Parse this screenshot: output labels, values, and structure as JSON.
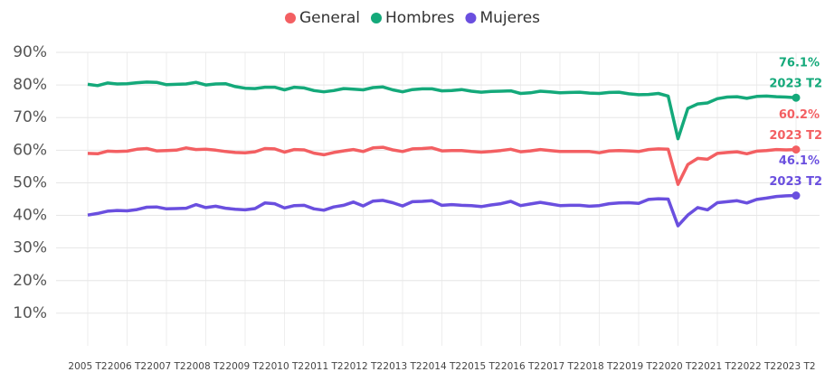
{
  "chart_data": {
    "type": "line",
    "categories": [
      "2005 T2",
      null,
      null,
      null,
      "2006 T2",
      null,
      null,
      null,
      "2007 T2",
      null,
      null,
      null,
      "2008 T2",
      null,
      null,
      null,
      "2009 T2",
      null,
      null,
      null,
      "2010 T2",
      null,
      null,
      null,
      "2011 T2",
      null,
      null,
      null,
      "2012 T2",
      null,
      null,
      null,
      "2013 T2",
      null,
      null,
      null,
      "2014 T2",
      null,
      null,
      null,
      "2015 T2",
      null,
      null,
      null,
      "2016 T2",
      null,
      null,
      null,
      "2017 T2",
      null,
      null,
      null,
      "2018 T2",
      null,
      null,
      null,
      "2019 T2",
      null,
      null,
      null,
      "2020 T2",
      null,
      null,
      null,
      "2021 T2",
      null,
      null,
      null,
      "2022 T2",
      null,
      null,
      null,
      "2023 T2"
    ],
    "series": [
      {
        "name": "General",
        "color": "#f35f62",
        "values": [
          59.0,
          58.9,
          59.7,
          59.6,
          59.7,
          60.3,
          60.5,
          59.8,
          59.9,
          60.0,
          60.7,
          60.2,
          60.3,
          60.0,
          59.6,
          59.3,
          59.2,
          59.5,
          60.5,
          60.4,
          59.4,
          60.2,
          60.1,
          59.1,
          58.6,
          59.3,
          59.8,
          60.2,
          59.6,
          60.7,
          60.9,
          60.1,
          59.6,
          60.4,
          60.5,
          60.7,
          59.8,
          59.9,
          59.9,
          59.6,
          59.4,
          59.6,
          59.9,
          60.3,
          59.5,
          59.8,
          60.2,
          59.9,
          59.6,
          59.6,
          59.6,
          59.6,
          59.2,
          59.8,
          59.9,
          59.8,
          59.6,
          60.2,
          60.4,
          60.3,
          49.5,
          55.6,
          57.5,
          57.2,
          59.0,
          59.3,
          59.5,
          58.9,
          59.7,
          59.9,
          60.2,
          60.1,
          60.2
        ],
        "value_labels": [
          null,
          null,
          null,
          null,
          null,
          null,
          null,
          null,
          null,
          null,
          null,
          null,
          null,
          null,
          null,
          null,
          null,
          null,
          null,
          null,
          null,
          null,
          null,
          null,
          null,
          null,
          null,
          null,
          null,
          null,
          null,
          null,
          null,
          null,
          null,
          null,
          null,
          null,
          null,
          null,
          null,
          null,
          null,
          null,
          null,
          null,
          null,
          null,
          null,
          null,
          null,
          null,
          null,
          null,
          null,
          null,
          null,
          null,
          null,
          null,
          null,
          null,
          null,
          null,
          null,
          null,
          null,
          null,
          null,
          null,
          null,
          null,
          "60.2%"
        ]
      },
      {
        "name": "Hombres",
        "color": "#14a97a",
        "values": [
          80.2,
          79.8,
          80.6,
          80.3,
          80.4,
          80.7,
          80.9,
          80.8,
          80.1,
          80.2,
          80.3,
          80.8,
          80.0,
          80.3,
          80.4,
          79.5,
          79.0,
          78.9,
          79.3,
          79.3,
          78.5,
          79.3,
          79.1,
          78.3,
          77.9,
          78.3,
          78.9,
          78.7,
          78.5,
          79.2,
          79.4,
          78.5,
          77.9,
          78.6,
          78.8,
          78.8,
          78.2,
          78.3,
          78.6,
          78.1,
          77.8,
          78.0,
          78.1,
          78.2,
          77.4,
          77.6,
          78.1,
          77.9,
          77.6,
          77.7,
          77.8,
          77.5,
          77.4,
          77.7,
          77.8,
          77.3,
          77.0,
          77.1,
          77.4,
          76.6,
          63.5,
          72.8,
          74.2,
          74.5,
          75.8,
          76.3,
          76.4,
          75.9,
          76.5,
          76.6,
          76.4,
          76.3,
          76.1
        ],
        "value_labels": [
          null,
          null,
          null,
          null,
          null,
          null,
          null,
          null,
          null,
          null,
          null,
          null,
          null,
          null,
          null,
          null,
          null,
          null,
          null,
          null,
          null,
          null,
          null,
          null,
          null,
          null,
          null,
          null,
          null,
          null,
          null,
          null,
          null,
          null,
          null,
          null,
          null,
          null,
          null,
          null,
          null,
          null,
          null,
          null,
          null,
          null,
          null,
          null,
          null,
          null,
          null,
          null,
          null,
          null,
          null,
          null,
          null,
          null,
          null,
          null,
          null,
          null,
          null,
          null,
          null,
          null,
          null,
          null,
          null,
          null,
          null,
          null,
          "76.1%"
        ]
      },
      {
        "name": "Mujeres",
        "color": "#6a4fdf",
        "values": [
          40.1,
          40.6,
          41.3,
          41.5,
          41.4,
          41.8,
          42.5,
          42.6,
          42.0,
          42.1,
          42.2,
          43.3,
          42.4,
          42.8,
          42.2,
          41.9,
          41.7,
          42.1,
          43.8,
          43.6,
          42.3,
          43.0,
          43.1,
          42.0,
          41.6,
          42.6,
          43.1,
          44.1,
          42.9,
          44.4,
          44.6,
          43.9,
          42.9,
          44.2,
          44.3,
          44.5,
          43.1,
          43.3,
          43.1,
          43.0,
          42.7,
          43.2,
          43.6,
          44.3,
          43.0,
          43.5,
          44.0,
          43.5,
          43.0,
          43.1,
          43.1,
          42.8,
          43.0,
          43.6,
          43.8,
          43.9,
          43.7,
          44.9,
          45.1,
          45.0,
          36.8,
          40.1,
          42.4,
          41.7,
          43.9,
          44.2,
          44.5,
          43.8,
          44.9,
          45.3,
          45.8,
          46.0,
          46.1
        ],
        "value_labels": [
          null,
          null,
          null,
          null,
          null,
          null,
          null,
          null,
          null,
          null,
          null,
          null,
          null,
          null,
          null,
          null,
          null,
          null,
          null,
          null,
          null,
          null,
          null,
          null,
          null,
          null,
          null,
          null,
          null,
          null,
          null,
          null,
          null,
          null,
          null,
          null,
          null,
          null,
          null,
          null,
          null,
          null,
          null,
          null,
          null,
          null,
          null,
          null,
          null,
          null,
          null,
          null,
          null,
          null,
          null,
          null,
          null,
          null,
          null,
          null,
          null,
          null,
          null,
          null,
          null,
          null,
          null,
          null,
          null,
          null,
          null,
          null,
          "46.1%"
        ]
      }
    ],
    "ylim": [
      0,
      90
    ],
    "yticks": [
      {
        "value": 10,
        "label": "10%"
      },
      {
        "value": 20,
        "label": "20%"
      },
      {
        "value": 30,
        "label": "30%"
      },
      {
        "value": 40,
        "label": "40%"
      },
      {
        "value": 50,
        "label": "50%"
      },
      {
        "value": 60,
        "label": "60%"
      },
      {
        "value": 70,
        "label": "70%"
      },
      {
        "value": 80,
        "label": "80%"
      },
      {
        "value": 90,
        "label": "90%"
      }
    ],
    "grid": true,
    "legend": "top"
  }
}
